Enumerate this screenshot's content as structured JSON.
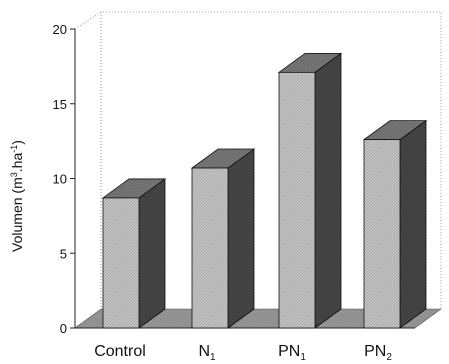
{
  "chart_data": {
    "type": "bar",
    "style": "3d",
    "categories": [
      {
        "main": "Control",
        "sub": ""
      },
      {
        "main": "N",
        "sub": "1"
      },
      {
        "main": "PN",
        "sub": "1"
      },
      {
        "main": "PN",
        "sub": "2"
      }
    ],
    "values": [
      8.7,
      10.7,
      17.1,
      12.6
    ],
    "ylabel": {
      "before": "Volumen (m",
      "sup1": "3",
      "mid": ".ha",
      "sup2": "-1",
      "after": ")"
    },
    "ylim": [
      0,
      20
    ],
    "yticks": [
      0,
      5,
      10,
      15,
      20
    ],
    "grid": false,
    "colors": {
      "bar_front": "#c4c4c4",
      "bar_side": "#4a4a4a",
      "bar_top": "#7a7a7a",
      "floor": "#9a9a9a",
      "axis": "#222222",
      "wall_border": "#9a9a9a"
    }
  }
}
